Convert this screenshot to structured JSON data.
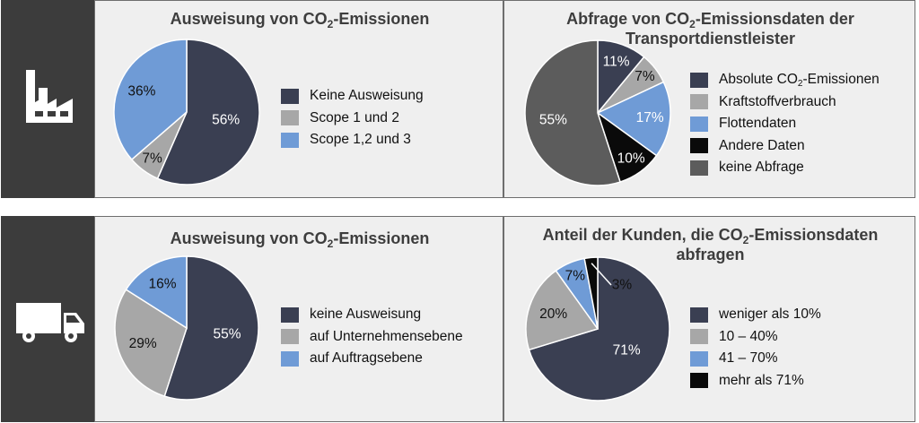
{
  "colors": {
    "dark_navy": "#3a3f52",
    "gray": "#a7a7a7",
    "blue": "#6f9bd6",
    "black": "#0a0a0a",
    "dark_gray": "#5c5c5c",
    "sidebar": "#3c3c3c",
    "panel_bg": "#efefef"
  },
  "icons": {
    "row1": "factory-icon",
    "row2": "truck-icon"
  },
  "panels": {
    "p1": {
      "title_pre": "Ausweisung von CO",
      "title_sub": "2",
      "title_post": "-Emissionen"
    },
    "p2": {
      "title_pre": "Abfrage von CO",
      "title_sub": "2",
      "title_post": "-Emissionsdaten der",
      "title_line2": "Transportdienstleister"
    },
    "p3": {
      "title_pre": "Ausweisung von CO",
      "title_sub": "2",
      "title_post": "-Emissionen"
    },
    "p4": {
      "title_pre": "Anteil der Kunden, die CO",
      "title_sub": "2",
      "title_post": "-Emissionsdaten",
      "title_line2": "abfragen"
    }
  },
  "chart_data": [
    {
      "type": "pie",
      "title": "Ausweisung von CO2-Emissionen",
      "categories": [
        "Keine Ausweisung",
        "Scope 1 und 2",
        "Scope 1,2 und 3"
      ],
      "values": [
        56,
        7,
        36
      ],
      "labels": [
        "56%",
        "7%",
        "36%"
      ],
      "colors": [
        "#3a3f52",
        "#a7a7a7",
        "#6f9bd6"
      ],
      "legend_position": "right"
    },
    {
      "type": "pie",
      "title": "Abfrage von CO2-Emissionsdaten der Transportdienstleister",
      "categories": [
        "Absolute CO2-Emissionen",
        "Kraftstoffverbrauch",
        "Flottendaten",
        "Andere Daten",
        "keine Abfrage"
      ],
      "legend_labels": [
        {
          "pre": "Absolute CO",
          "sub": "2",
          "post": "-Emissionen"
        },
        {
          "pre": "Kraftstoffverbrauch",
          "sub": "",
          "post": ""
        },
        {
          "pre": "Flottendaten",
          "sub": "",
          "post": ""
        },
        {
          "pre": "Andere Daten",
          "sub": "",
          "post": ""
        },
        {
          "pre": "keine Abfrage",
          "sub": "",
          "post": ""
        }
      ],
      "values": [
        11,
        7,
        17,
        10,
        55
      ],
      "labels": [
        "11%",
        "7%",
        "17%",
        "10%",
        "55%"
      ],
      "colors": [
        "#3a3f52",
        "#a7a7a7",
        "#6f9bd6",
        "#0a0a0a",
        "#5c5c5c"
      ],
      "legend_position": "right"
    },
    {
      "type": "pie",
      "title": "Ausweisung von CO2-Emissionen",
      "categories": [
        "keine Ausweisung",
        "auf Unternehmensebene",
        "auf Auftragsebene"
      ],
      "values": [
        55,
        29,
        16
      ],
      "labels": [
        "55%",
        "29%",
        "16%"
      ],
      "colors": [
        "#3a3f52",
        "#a7a7a7",
        "#6f9bd6"
      ],
      "legend_position": "right"
    },
    {
      "type": "pie",
      "title": "Anteil der Kunden, die CO2-Emissionsdaten abfragen",
      "categories": [
        "weniger als 10%",
        "10 – 40%",
        "41 – 70%",
        "mehr als 71%"
      ],
      "values": [
        71,
        20,
        7,
        3
      ],
      "labels": [
        "71%",
        "20%",
        "7%",
        "3%"
      ],
      "colors": [
        "#3a3f52",
        "#a7a7a7",
        "#6f9bd6",
        "#0a0a0a"
      ],
      "legend_position": "bottom-right"
    }
  ]
}
